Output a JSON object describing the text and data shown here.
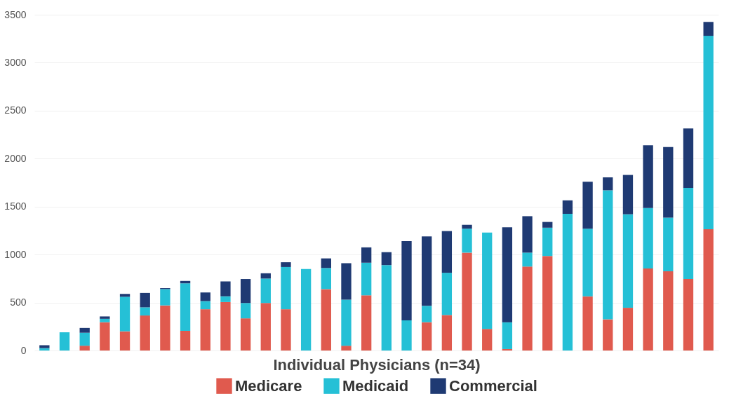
{
  "chart_data": {
    "type": "bar",
    "xlabel": "Individual Physicians (n=34)",
    "categories": [
      null,
      null,
      null,
      null,
      null,
      null,
      null,
      null,
      null,
      null,
      null,
      null,
      null,
      null,
      null,
      null,
      null,
      null,
      null,
      null,
      null,
      null,
      null,
      null,
      null,
      null,
      null,
      null,
      null,
      null,
      null,
      null,
      null,
      null
    ],
    "stacked": true,
    "series": [
      {
        "name": "Medicare",
        "color": "#e05a4e",
        "values": [
          0,
          0,
          50,
          295,
          200,
          365,
          470,
          205,
          430,
          505,
          335,
          495,
          430,
          0,
          640,
          50,
          575,
          0,
          0,
          295,
          370,
          1020,
          225,
          15,
          875,
          985,
          0,
          565,
          325,
          445,
          855,
          825,
          745,
          1265
        ]
      },
      {
        "name": "Medicaid",
        "color": "#25c0d6",
        "values": [
          25,
          190,
          135,
          35,
          360,
          85,
          170,
          495,
          85,
          60,
          160,
          255,
          440,
          850,
          220,
          480,
          340,
          890,
          315,
          170,
          440,
          250,
          1005,
          280,
          145,
          295,
          1425,
          705,
          1345,
          975,
          630,
          560,
          950,
          2015
        ]
      },
      {
        "name": "Commercial",
        "color": "#1f3a73",
        "values": [
          30,
          0,
          50,
          25,
          30,
          150,
          10,
          25,
          90,
          155,
          250,
          55,
          50,
          0,
          100,
          380,
          160,
          135,
          825,
          725,
          435,
          40,
          0,
          990,
          380,
          60,
          140,
          490,
          135,
          410,
          655,
          735,
          620,
          145
        ]
      }
    ],
    "ylim": [
      0,
      3500
    ],
    "yticks": [
      0,
      500,
      1000,
      1500,
      2000,
      2500,
      3000,
      3500
    ],
    "grid": "y",
    "legend": "bottom",
    "tick_labels": "y"
  }
}
